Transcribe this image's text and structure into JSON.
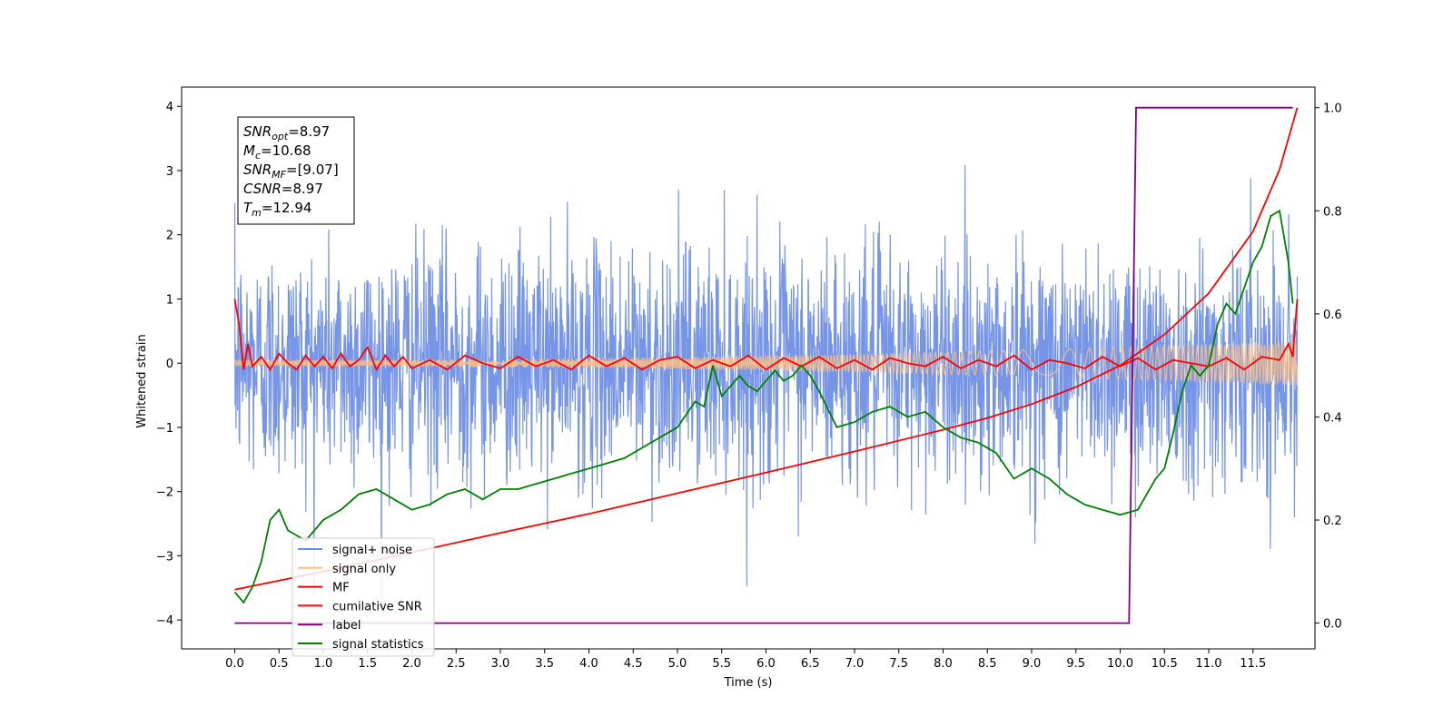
{
  "chart_data": {
    "type": "line",
    "title": "",
    "xlabel": "Time (s)",
    "ylabel": "Whitened strain",
    "xlim": [
      -0.6,
      12.2
    ],
    "ylim": [
      -4.45,
      4.3
    ],
    "ylim_right": [
      -0.05,
      1.04
    ],
    "xticks": [
      "0.0",
      "0.5",
      "1.0",
      "1.5",
      "2.0",
      "2.5",
      "3.0",
      "3.5",
      "4.0",
      "4.5",
      "5.0",
      "5.5",
      "6.0",
      "6.5",
      "7.0",
      "7.5",
      "8.0",
      "8.5",
      "9.0",
      "9.5",
      "10.0",
      "10.5",
      "11.0",
      "11.5"
    ],
    "yticks_left": [
      "4",
      "3",
      "2",
      "1",
      "0",
      "−1",
      "−2",
      "−3",
      "−4"
    ],
    "yticks_right": [
      "1.0",
      "0.8",
      "0.6",
      "0.4",
      "0.2",
      "0.0"
    ],
    "grid": false,
    "legend_position": "lower-left",
    "annotation": [
      {
        "symbol": "SNR",
        "sub": "opt",
        "value": "=8.97"
      },
      {
        "symbol": "M",
        "sub": "c",
        "value": "=10.68"
      },
      {
        "symbol": "SNR",
        "sub": "MF",
        "value": "=[9.07]"
      },
      {
        "symbol": "CSNR",
        "sub": "",
        "value": "=8.97"
      },
      {
        "symbol": "T",
        "sub": "m",
        "value": "=12.94"
      }
    ],
    "series": [
      {
        "name": "signal+ noise",
        "color": "#6f8fe6",
        "axis": "left",
        "kind": "noise",
        "sigma": 0.9,
        "x_range": [
          0.0,
          12.0
        ]
      },
      {
        "name": "signal only",
        "color": "#ffbf80",
        "axis": "left",
        "kind": "chirp",
        "x_range": [
          0.0,
          12.0
        ],
        "amplitude_start": 0.05,
        "amplitude_end": 0.35
      },
      {
        "name": "MF",
        "color": "#ff0000",
        "axis": "left",
        "x": [
          0.0,
          0.05,
          0.1,
          0.15,
          0.2,
          0.3,
          0.4,
          0.5,
          0.6,
          0.7,
          0.8,
          0.9,
          1.0,
          1.1,
          1.2,
          1.3,
          1.4,
          1.5,
          1.6,
          1.7,
          1.8,
          1.9,
          2.0,
          2.2,
          2.4,
          2.6,
          2.8,
          3.0,
          3.2,
          3.4,
          3.6,
          3.8,
          4.0,
          4.2,
          4.4,
          4.6,
          4.8,
          5.0,
          5.2,
          5.4,
          5.6,
          5.8,
          6.0,
          6.2,
          6.4,
          6.6,
          6.8,
          7.0,
          7.2,
          7.4,
          7.6,
          7.8,
          8.0,
          8.2,
          8.4,
          8.6,
          8.8,
          9.0,
          9.2,
          9.4,
          9.6,
          9.8,
          10.0,
          10.2,
          10.4,
          10.6,
          10.8,
          11.0,
          11.2,
          11.4,
          11.6,
          11.8,
          11.9,
          11.95,
          12.0
        ],
        "y": [
          1.0,
          0.6,
          -0.1,
          0.3,
          -0.05,
          0.1,
          -0.1,
          0.15,
          0.0,
          -0.1,
          0.12,
          -0.05,
          0.1,
          -0.08,
          0.15,
          -0.05,
          0.05,
          0.25,
          -0.1,
          0.12,
          -0.05,
          0.1,
          -0.08,
          0.05,
          -0.1,
          0.12,
          0.0,
          -0.08,
          0.1,
          -0.05,
          0.05,
          -0.1,
          0.12,
          -0.05,
          0.08,
          -0.1,
          0.05,
          0.1,
          -0.08,
          0.05,
          -0.05,
          0.12,
          -0.1,
          0.08,
          -0.05,
          0.1,
          -0.08,
          0.05,
          -0.1,
          0.08,
          0.0,
          -0.05,
          0.1,
          -0.08,
          0.05,
          -0.05,
          0.12,
          -0.1,
          0.05,
          0.0,
          -0.08,
          0.1,
          -0.05,
          0.08,
          -0.1,
          0.05,
          0.0,
          -0.05,
          0.08,
          -0.1,
          0.1,
          0.05,
          0.3,
          0.1,
          1.0
        ]
      },
      {
        "name": "cumilative SNR",
        "color": "#ff0000",
        "axis": "right",
        "x": [
          0.0,
          1.0,
          2.0,
          3.0,
          4.0,
          5.0,
          6.0,
          7.0,
          8.0,
          8.5,
          9.0,
          9.5,
          10.0,
          10.5,
          11.0,
          11.5,
          11.8,
          12.0
        ],
        "y": [
          0.065,
          0.1,
          0.137,
          0.175,
          0.212,
          0.252,
          0.292,
          0.333,
          0.375,
          0.398,
          0.425,
          0.458,
          0.5,
          0.56,
          0.64,
          0.76,
          0.88,
          1.0
        ]
      },
      {
        "name": "label",
        "color": "#800080",
        "axis": "right",
        "x": [
          0.0,
          10.1,
          10.18,
          11.95
        ],
        "y": [
          0.0,
          0.0,
          1.0,
          1.0
        ]
      },
      {
        "name": "signal statistics",
        "color": "#008000",
        "axis": "right",
        "x": [
          0.0,
          0.1,
          0.2,
          0.3,
          0.4,
          0.5,
          0.6,
          0.7,
          0.8,
          0.9,
          1.0,
          1.2,
          1.4,
          1.6,
          1.8,
          2.0,
          2.2,
          2.4,
          2.6,
          2.8,
          3.0,
          3.2,
          3.4,
          3.6,
          3.8,
          4.0,
          4.2,
          4.4,
          4.6,
          4.8,
          5.0,
          5.2,
          5.3,
          5.4,
          5.5,
          5.6,
          5.7,
          5.8,
          5.9,
          6.0,
          6.1,
          6.2,
          6.3,
          6.4,
          6.5,
          6.6,
          6.8,
          7.0,
          7.2,
          7.4,
          7.6,
          7.8,
          8.0,
          8.2,
          8.4,
          8.6,
          8.8,
          9.0,
          9.2,
          9.4,
          9.6,
          9.8,
          10.0,
          10.2,
          10.4,
          10.5,
          10.6,
          10.7,
          10.8,
          10.9,
          11.0,
          11.1,
          11.2,
          11.3,
          11.4,
          11.5,
          11.6,
          11.7,
          11.8,
          11.9,
          11.95
        ],
        "y": [
          0.06,
          0.04,
          0.07,
          0.12,
          0.2,
          0.22,
          0.18,
          0.17,
          0.16,
          0.18,
          0.2,
          0.22,
          0.25,
          0.26,
          0.24,
          0.22,
          0.23,
          0.25,
          0.26,
          0.24,
          0.26,
          0.26,
          0.27,
          0.28,
          0.29,
          0.3,
          0.31,
          0.32,
          0.34,
          0.36,
          0.38,
          0.43,
          0.42,
          0.5,
          0.44,
          0.46,
          0.48,
          0.46,
          0.45,
          0.47,
          0.49,
          0.47,
          0.48,
          0.5,
          0.48,
          0.45,
          0.38,
          0.39,
          0.41,
          0.42,
          0.4,
          0.41,
          0.38,
          0.36,
          0.35,
          0.33,
          0.28,
          0.3,
          0.28,
          0.25,
          0.23,
          0.22,
          0.21,
          0.22,
          0.28,
          0.3,
          0.37,
          0.45,
          0.5,
          0.48,
          0.5,
          0.58,
          0.62,
          0.6,
          0.65,
          0.7,
          0.73,
          0.79,
          0.8,
          0.7,
          0.62
        ]
      }
    ]
  }
}
